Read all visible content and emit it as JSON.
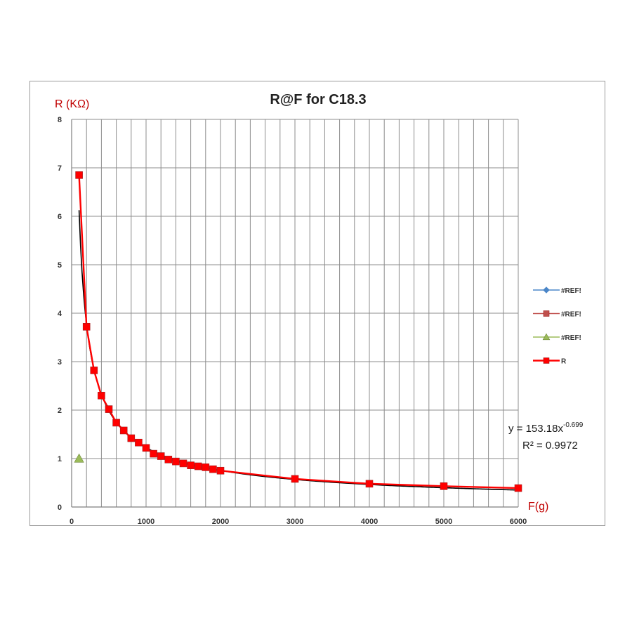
{
  "chart_data": {
    "type": "scatter",
    "title": "R@F  for C18.3",
    "xlabel": "F(g)",
    "ylabel": "R (KΩ)",
    "xlim": [
      0,
      6000
    ],
    "ylim": [
      0,
      8
    ],
    "x_ticks": [
      0,
      1000,
      2000,
      3000,
      4000,
      5000,
      6000
    ],
    "y_ticks": [
      0,
      1,
      2,
      3,
      4,
      5,
      6,
      7,
      8
    ],
    "grid": true,
    "legend_position": "right",
    "colors": {
      "series_blue": "#4a86c8",
      "series_red": "#c0504d",
      "series_green": "#9bbb59",
      "series_R": "#ff0000",
      "trendline": "#000000",
      "grid": "#8c8c8c",
      "axis_title": "#c00000"
    },
    "series": [
      {
        "name": "#REF!",
        "marker": "diamond",
        "color": "#4a86c8",
        "x": [],
        "y": []
      },
      {
        "name": "#REF!",
        "marker": "square",
        "color": "#c0504d",
        "x": [],
        "y": []
      },
      {
        "name": "#REF!",
        "marker": "triangle",
        "color": "#9bbb59",
        "x": [
          100
        ],
        "y": [
          1.0
        ]
      },
      {
        "name": "R",
        "marker": "square",
        "color": "#ff0000",
        "x": [
          100,
          200,
          300,
          400,
          500,
          600,
          700,
          800,
          900,
          1000,
          1100,
          1200,
          1300,
          1400,
          1500,
          1600,
          1700,
          1800,
          1900,
          2000,
          3000,
          4000,
          5000,
          6000
        ],
        "y": [
          6.85,
          3.72,
          2.82,
          2.3,
          2.02,
          1.74,
          1.58,
          1.42,
          1.33,
          1.22,
          1.1,
          1.05,
          0.98,
          0.94,
          0.9,
          0.86,
          0.84,
          0.82,
          0.78,
          0.75,
          0.58,
          0.48,
          0.43,
          0.39
        ]
      }
    ],
    "trendline": {
      "type": "power",
      "coefficient": 153.18,
      "exponent": -0.699,
      "equation_prefix": "y = 153.18x",
      "equation_exponent": "-0.699",
      "r_squared": "R² = 0.9972"
    }
  }
}
